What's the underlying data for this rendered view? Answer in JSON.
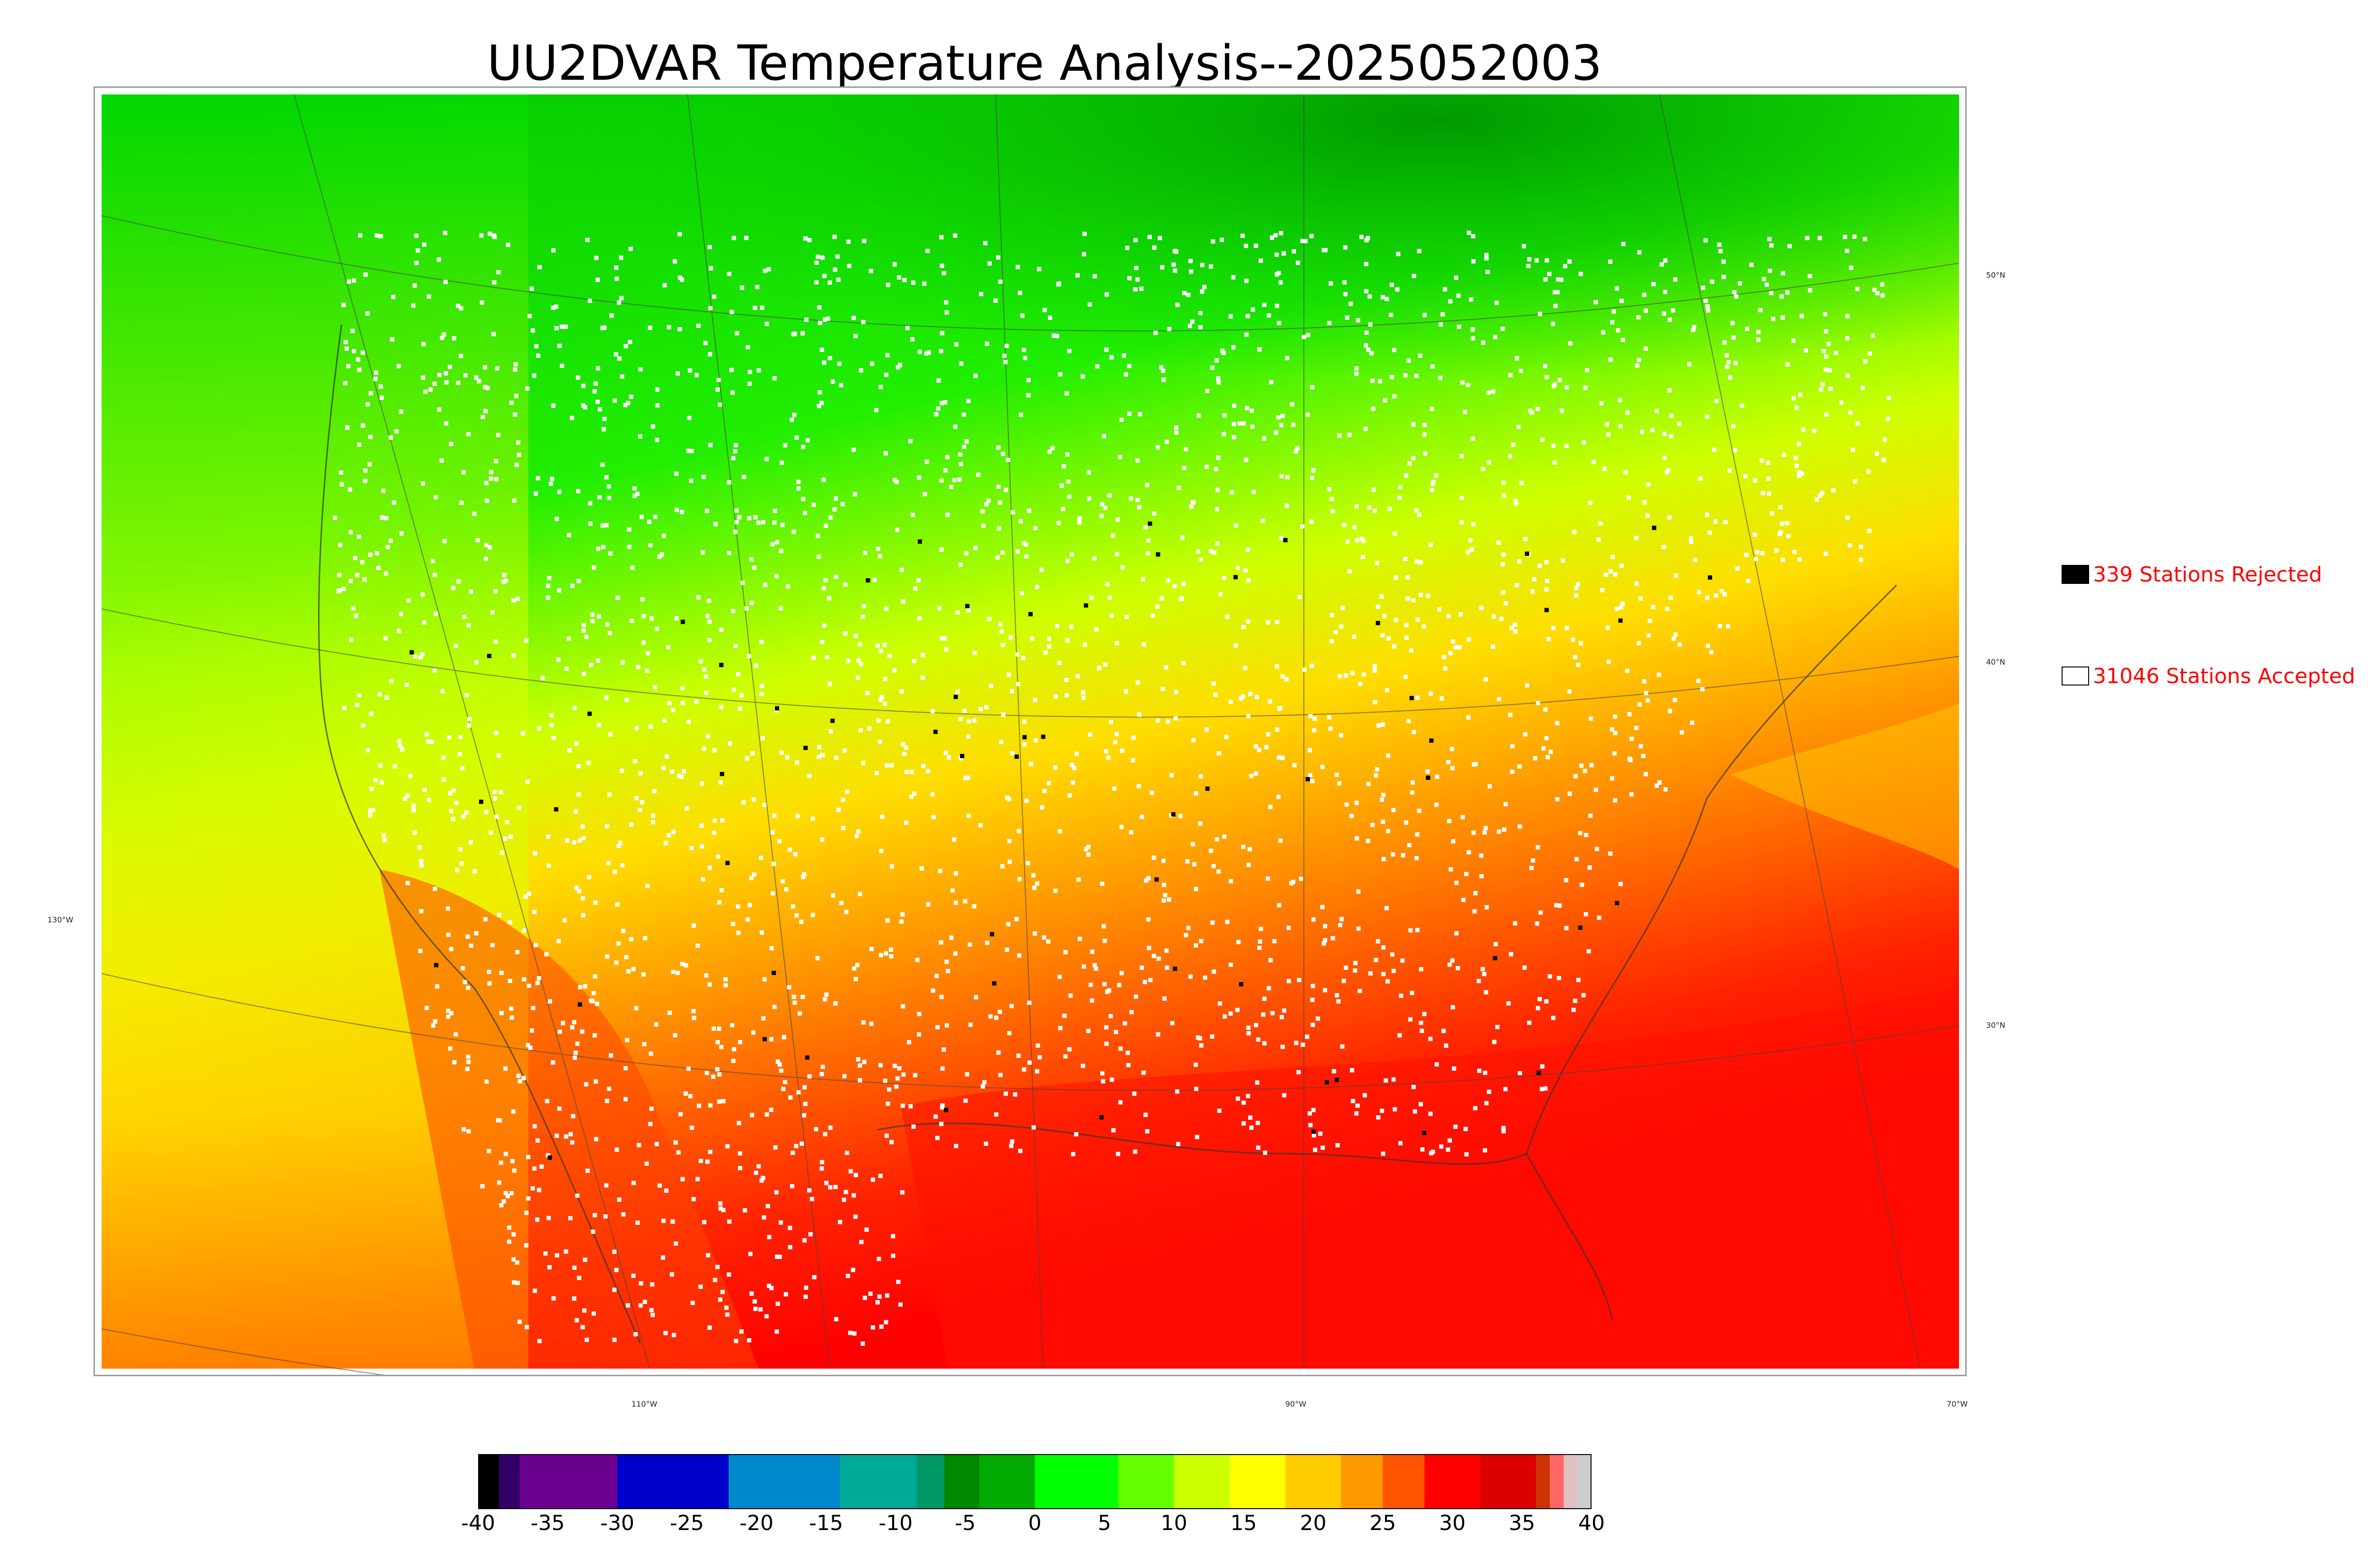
{
  "title": "UU2DVAR Temperature Analysis--2025052003",
  "map": {
    "graticule_labels": [
      {
        "id": "lat-50",
        "text": "50°N"
      },
      {
        "id": "lat-40",
        "text": "40°N"
      },
      {
        "id": "lat-30",
        "text": "30°N"
      },
      {
        "id": "lon-130",
        "text": "130°W"
      },
      {
        "id": "lon-110",
        "text": "110°W"
      },
      {
        "id": "lon-90",
        "text": "90°W"
      },
      {
        "id": "lon-70",
        "text": "70°W"
      }
    ],
    "colors": {
      "cold_north": "#00cc00",
      "mid": "#ffff00",
      "warm": "#ff9900",
      "hot": "#ff0000",
      "station_accepted": "#ffffff",
      "station_rejected": "#000000"
    }
  },
  "legend": {
    "rejected": {
      "label": "339 Stations Rejected",
      "color": "#000000"
    },
    "accepted": {
      "label": "31046 Stations Accepted",
      "color": "#ffffff"
    }
  },
  "colorbar": {
    "min": -40,
    "max": 40,
    "ticks": [
      "-40",
      "-35",
      "-30",
      "-25",
      "-20",
      "-15",
      "-10",
      "-5",
      "0",
      "5",
      "10",
      "15",
      "20",
      "25",
      "30",
      "35",
      "40"
    ],
    "segments": [
      {
        "from": -40,
        "to": -38.5,
        "color": "#000000"
      },
      {
        "from": -38.5,
        "to": -37,
        "color": "#330066"
      },
      {
        "from": -37,
        "to": -30,
        "color": "#6b0090"
      },
      {
        "from": -30,
        "to": -22,
        "color": "#0000cc"
      },
      {
        "from": -22,
        "to": -14,
        "color": "#0088cc"
      },
      {
        "from": -14,
        "to": -8.5,
        "color": "#00aa99"
      },
      {
        "from": -8.5,
        "to": -6.5,
        "color": "#009966"
      },
      {
        "from": -6.5,
        "to": -4,
        "color": "#008800"
      },
      {
        "from": -4,
        "to": 0,
        "color": "#00aa00"
      },
      {
        "from": 0,
        "to": 6,
        "color": "#00ff00"
      },
      {
        "from": 6,
        "to": 10,
        "color": "#66ff00"
      },
      {
        "from": 10,
        "to": 14,
        "color": "#ccff00"
      },
      {
        "from": 14,
        "to": 18,
        "color": "#ffff00"
      },
      {
        "from": 18,
        "to": 22,
        "color": "#ffcc00"
      },
      {
        "from": 22,
        "to": 25,
        "color": "#ff9900"
      },
      {
        "from": 25,
        "to": 28,
        "color": "#ff5500"
      },
      {
        "from": 28,
        "to": 32,
        "color": "#ff0000"
      },
      {
        "from": 32,
        "to": 36,
        "color": "#dd0000"
      },
      {
        "from": 36,
        "to": 37,
        "color": "#cc3300"
      },
      {
        "from": 37,
        "to": 38,
        "color": "#ff6666"
      },
      {
        "from": 38,
        "to": 39,
        "color": "#e0c0c0"
      },
      {
        "from": 39,
        "to": 40,
        "color": "#cccccc"
      }
    ]
  }
}
